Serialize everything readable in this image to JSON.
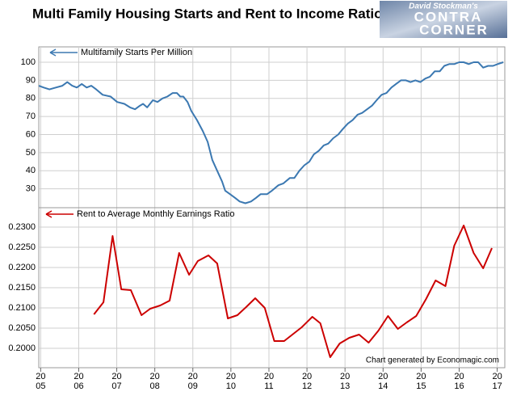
{
  "logo": [
    "David Stockman's",
    "CONTRA",
    "CORNER"
  ],
  "chart_data": [
    {
      "type": "line",
      "title": "Multi Family Housing Starts and Rent to Income Ratio",
      "xlim": [
        2004.95,
        2017.2
      ],
      "ylim": [
        20,
        108.5
      ],
      "yticks": [
        30,
        40,
        50,
        60,
        70,
        80,
        90,
        100
      ],
      "grid": true,
      "series": [
        {
          "name": "Multifamily Starts Per Million",
          "color": "#3b78b1",
          "x": [
            2004.95,
            2005.08,
            2005.23,
            2005.4,
            2005.57,
            2005.7,
            2005.83,
            2005.95,
            2006.08,
            2006.21,
            2006.33,
            2006.46,
            2006.63,
            2006.84,
            2007.01,
            2007.2,
            2007.35,
            2007.48,
            2007.61,
            2007.69,
            2007.8,
            2007.95,
            2008.07,
            2008.2,
            2008.33,
            2008.47,
            2008.58,
            2008.67,
            2008.75,
            2008.86,
            2008.96,
            2009.11,
            2009.26,
            2009.39,
            2009.51,
            2009.64,
            2009.77,
            2009.85,
            2009.98,
            2010.11,
            2010.23,
            2010.38,
            2010.53,
            2010.66,
            2010.78,
            2010.95,
            2011.08,
            2011.25,
            2011.38,
            2011.55,
            2011.67,
            2011.8,
            2011.93,
            2012.06,
            2012.18,
            2012.31,
            2012.44,
            2012.56,
            2012.69,
            2012.82,
            2012.94,
            2013.07,
            2013.2,
            2013.33,
            2013.45,
            2013.58,
            2013.71,
            2013.83,
            2013.96,
            2014.09,
            2014.22,
            2014.34,
            2014.47,
            2014.6,
            2014.72,
            2014.85,
            2014.98,
            2015.11,
            2015.23,
            2015.36,
            2015.49,
            2015.61,
            2015.74,
            2015.87,
            2016.0,
            2016.12,
            2016.25,
            2016.38,
            2016.5,
            2016.63,
            2016.76,
            2016.89,
            2017.01,
            2017.16
          ],
          "values": [
            87,
            86,
            85,
            86,
            87,
            89,
            87,
            86,
            88,
            86,
            87,
            85,
            82,
            81,
            78,
            77,
            75,
            74,
            76,
            77,
            75,
            79,
            78,
            80,
            81,
            83,
            83,
            81,
            81,
            78,
            73,
            68,
            62,
            56,
            46,
            40,
            34,
            29,
            27,
            25,
            23,
            22,
            23,
            25,
            27,
            27,
            29,
            32,
            33,
            36,
            36,
            40,
            43,
            45,
            49,
            51,
            54,
            55,
            58,
            60,
            63,
            66,
            68,
            71,
            72,
            74,
            76,
            79,
            82,
            83,
            86,
            88,
            90,
            90,
            89,
            90,
            89,
            91,
            92,
            95,
            95,
            98,
            99,
            99,
            100,
            100,
            99,
            100,
            100,
            97,
            98,
            98,
            99,
            100
          ]
        }
      ]
    },
    {
      "type": "line",
      "xlim": [
        2004.95,
        2017.2
      ],
      "ylim": [
        0.1952,
        0.2346
      ],
      "grid": true,
      "xticks": [
        {
          "value": 2005,
          "label": "20\n05"
        },
        {
          "value": 2006,
          "label": "20\n06"
        },
        {
          "value": 2007,
          "label": "20\n07"
        },
        {
          "value": 2008,
          "label": "20\n08"
        },
        {
          "value": 2009,
          "label": "20\n09"
        },
        {
          "value": 2010,
          "label": "20\n10"
        },
        {
          "value": 2011,
          "label": "20\n11"
        },
        {
          "value": 2012,
          "label": "20\n12"
        },
        {
          "value": 2013,
          "label": "20\n13"
        },
        {
          "value": 2014,
          "label": "20\n14"
        },
        {
          "value": 2015,
          "label": "20\n15"
        },
        {
          "value": 2016,
          "label": "20\n16"
        },
        {
          "value": 2017,
          "label": "20\n17"
        }
      ],
      "yticks": [
        {
          "value": 0.2,
          "label": "0.2000"
        },
        {
          "value": 0.205,
          "label": "0.2050"
        },
        {
          "value": 0.21,
          "label": "0.2100"
        },
        {
          "value": 0.215,
          "label": "0.2150"
        },
        {
          "value": 0.22,
          "label": "0.2200"
        },
        {
          "value": 0.225,
          "label": "0.2250"
        },
        {
          "value": 0.23,
          "label": "0.2300"
        }
      ],
      "annotation": "Chart generated by Economagic.com",
      "series": [
        {
          "name": "Rent to Average Monthly Earnings Ratio",
          "color": "#cc0000",
          "x": [
            2006.4,
            2006.65,
            2006.89,
            2007.12,
            2007.37,
            2007.65,
            2007.88,
            2008.14,
            2008.39,
            2008.64,
            2008.9,
            2009.13,
            2009.41,
            2009.64,
            2009.92,
            2010.17,
            2010.4,
            2010.64,
            2010.89,
            2011.14,
            2011.4,
            2011.86,
            2012.14,
            2012.35,
            2012.61,
            2012.86,
            2013.11,
            2013.37,
            2013.62,
            2013.88,
            2014.13,
            2014.39,
            2014.62,
            2014.87,
            2015.13,
            2015.38,
            2015.64,
            2015.87,
            2016.12,
            2016.38,
            2016.63,
            2016.86
          ],
          "values": [
            0.2084,
            0.2114,
            0.2278,
            0.2146,
            0.2144,
            0.2082,
            0.2098,
            0.2106,
            0.2118,
            0.2236,
            0.2182,
            0.2216,
            0.223,
            0.221,
            0.2074,
            0.2082,
            0.2102,
            0.2124,
            0.21,
            0.2018,
            0.2018,
            0.2052,
            0.2078,
            0.2062,
            0.1978,
            0.2012,
            0.2026,
            0.2034,
            0.2014,
            0.2044,
            0.208,
            0.2048,
            0.2064,
            0.208,
            0.2122,
            0.2168,
            0.2154,
            0.2254,
            0.2304,
            0.2236,
            0.2198,
            0.2248
          ]
        }
      ]
    }
  ]
}
